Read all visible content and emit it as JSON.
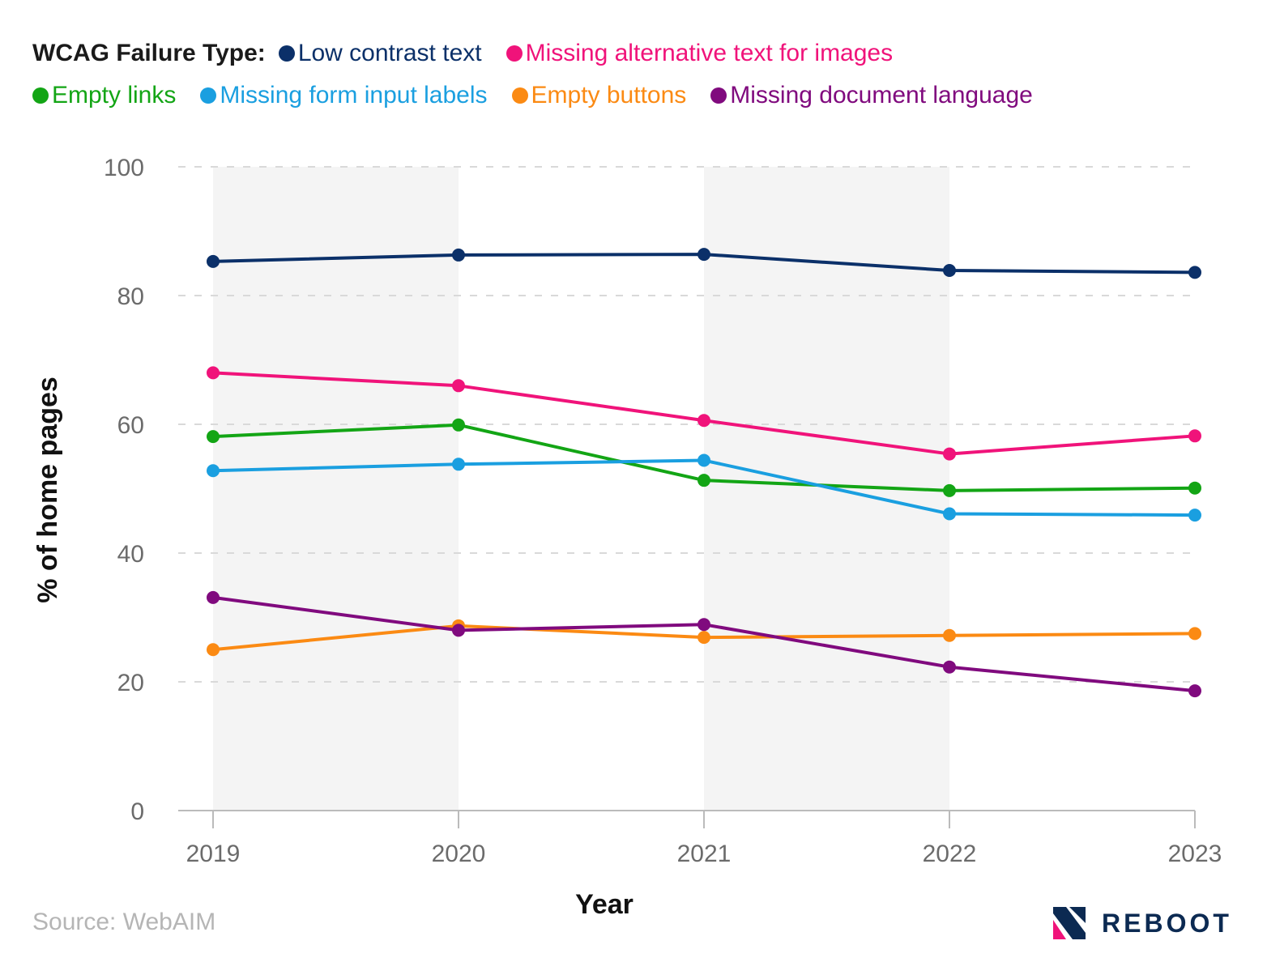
{
  "legend": {
    "title": "WCAG Failure Type:"
  },
  "source": "Source: WebAIM",
  "brand": {
    "name": "REBOOT",
    "icon": "reboot-logo-icon"
  },
  "chart_data": {
    "type": "line",
    "xlabel": "Year",
    "ylabel": "% of home pages",
    "ylim": [
      0,
      100
    ],
    "yticks": [
      0,
      20,
      40,
      60,
      80,
      100
    ],
    "categories": [
      "2019",
      "2020",
      "2021",
      "2022",
      "2023"
    ],
    "grid": "horizontal dashed",
    "legend_position": "top",
    "shaded_bands": [
      [
        "2019",
        "2020"
      ],
      [
        "2021",
        "2022"
      ]
    ],
    "series": [
      {
        "name": "Low contrast text",
        "color": "#0b3069",
        "values": [
          85.3,
          86.3,
          86.4,
          83.9,
          83.6
        ]
      },
      {
        "name": "Missing alternative text for images",
        "color": "#f0137a",
        "values": [
          68,
          66,
          60.6,
          55.4,
          58.2
        ]
      },
      {
        "name": "Empty links",
        "color": "#13a515",
        "values": [
          58.1,
          59.9,
          51.3,
          49.7,
          50.1
        ]
      },
      {
        "name": "Missing form input labels",
        "color": "#1a9fe0",
        "values": [
          52.8,
          53.8,
          54.4,
          46.1,
          45.9
        ]
      },
      {
        "name": "Empty buttons",
        "color": "#fb8a13",
        "values": [
          25,
          28.7,
          26.9,
          27.2,
          27.5
        ]
      },
      {
        "name": "Missing document language",
        "color": "#800a7e",
        "values": [
          33.1,
          28,
          28.9,
          22.3,
          18.6
        ]
      }
    ]
  }
}
